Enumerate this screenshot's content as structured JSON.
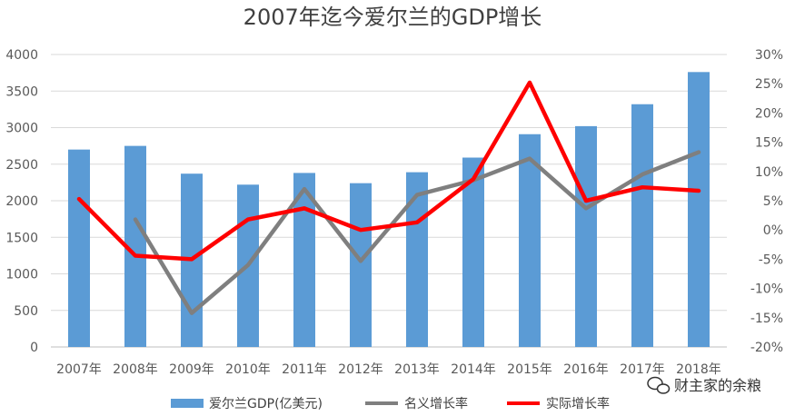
{
  "chart_data": {
    "type": "bar",
    "title": "2007年迄今爱尔兰的GDP增长",
    "categories": [
      "2007年",
      "2008年",
      "2009年",
      "2010年",
      "2011年",
      "2012年",
      "2013年",
      "2014年",
      "2015年",
      "2016年",
      "2017年",
      "2018年"
    ],
    "series": [
      {
        "name": "爱尔兰GDP(亿美元)",
        "type": "bar",
        "axis": "left",
        "color": "#5b9bd5",
        "values": [
          2700,
          2750,
          2370,
          2220,
          2380,
          2240,
          2390,
          2590,
          2910,
          3020,
          3320,
          3760
        ]
      },
      {
        "name": "名义增长率",
        "type": "line",
        "axis": "right",
        "color": "#7f7f7f",
        "values": [
          null,
          1.8,
          -14.2,
          -6.0,
          7.0,
          -5.3,
          6.0,
          8.5,
          12.2,
          3.7,
          9.5,
          13.3
        ]
      },
      {
        "name": "实际增长率",
        "type": "line",
        "axis": "right",
        "color": "#ff0000",
        "values": [
          5.3,
          -4.4,
          -5.0,
          1.8,
          3.7,
          0.0,
          1.3,
          8.7,
          25.2,
          5.0,
          7.3,
          6.7
        ]
      }
    ],
    "y_left": {
      "ylim": [
        0,
        4000
      ],
      "ticks": [
        "0",
        "500",
        "1000",
        "1500",
        "2000",
        "2500",
        "3000",
        "3500",
        "4000"
      ]
    },
    "y_right": {
      "ylim": [
        -20,
        30
      ],
      "ticks": [
        "-20%",
        "-15%",
        "-10%",
        "-5%",
        "0%",
        "5%",
        "10%",
        "15%",
        "20%",
        "25%",
        "30%"
      ]
    },
    "grid": true,
    "legend": "bottom"
  },
  "watermark": {
    "text": "财主家的余粮",
    "icon": "wechat-icon"
  }
}
